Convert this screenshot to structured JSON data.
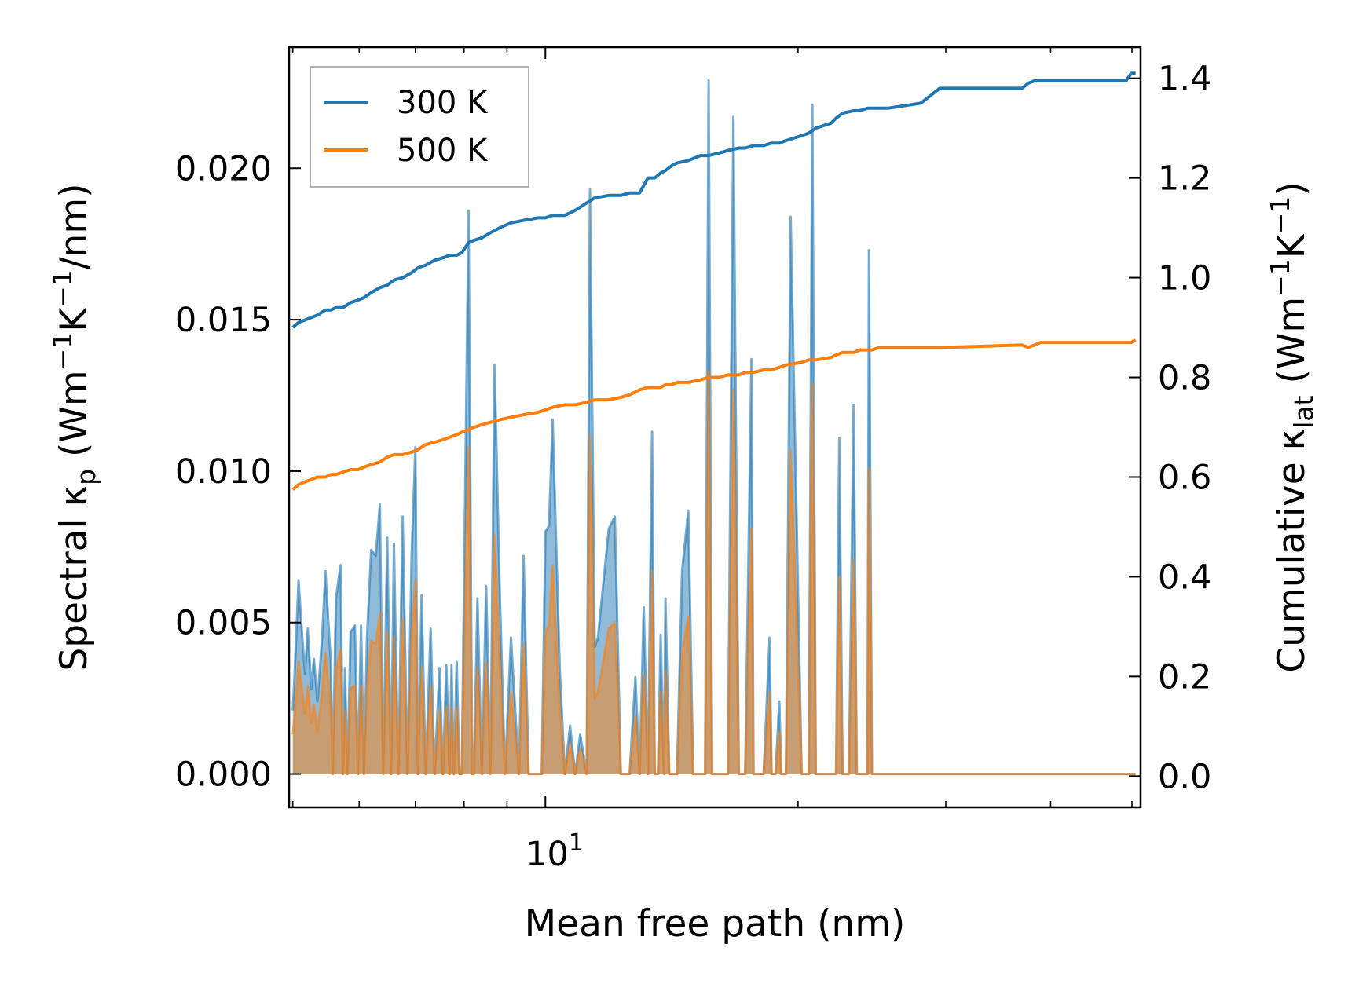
{
  "chart_data": {
    "type": "line",
    "xscale": "log",
    "xlim": [
      4.95,
      51.2
    ],
    "x_tick_major": [
      10
    ],
    "x_tick_major_label": {
      "base": "10",
      "exp": "1"
    },
    "x_tick_minor": [
      5,
      6,
      7,
      8,
      9,
      20,
      30,
      40,
      50
    ],
    "xlabel": "Mean free path (nm)",
    "ylabel_left": {
      "pre": "Spectral κ",
      "sub": "p",
      "mid": " (Wm",
      "sup1": "−1",
      "k": "K",
      "sup2": "−1",
      "post": "/nm)"
    },
    "ylabel_right": {
      "pre": "Cumulative κ",
      "sub": "lat",
      "mid": " (Wm",
      "sup1": "−1",
      "k": "K",
      "sup2": "−1",
      "post": ")"
    },
    "ylim_left": [
      -0.0011,
      0.024
    ],
    "ylim_right": [
      -0.0625,
      1.4625
    ],
    "yticks_left": [
      "0.000",
      "0.005",
      "0.010",
      "0.015",
      "0.020"
    ],
    "yticks_right": [
      "0.0",
      "0.2",
      "0.4",
      "0.6",
      "0.8",
      "1.0",
      "1.2",
      "1.4"
    ],
    "legend": {
      "position": "upper left",
      "entries": [
        "300 K",
        "500 K"
      ]
    },
    "colors": {
      "300 K": "#1f77b4",
      "500 K": "#ff7f0e"
    },
    "spectral": {
      "x": [
        5.0,
        5.03,
        5.08,
        5.13,
        5.17,
        5.21,
        5.26,
        5.3,
        5.35,
        5.42,
        5.47,
        5.5,
        5.55,
        5.58,
        5.63,
        5.7,
        5.74,
        5.77,
        5.81,
        5.86,
        5.9,
        5.93,
        5.98,
        6.03,
        6.08,
        6.13,
        6.2,
        6.28,
        6.35,
        6.41,
        6.48,
        6.55,
        6.6,
        6.68,
        6.76,
        6.85,
        6.93,
        7.0,
        7.05,
        7.12,
        7.2,
        7.3,
        7.38,
        7.48,
        7.55,
        7.62,
        7.69,
        7.73,
        7.78,
        7.84,
        7.9,
        7.95,
        8.1,
        8.18,
        8.22,
        8.3,
        8.4,
        8.5,
        8.6,
        8.7,
        8.82,
        8.95,
        9.1,
        9.3,
        9.42,
        9.55,
        9.8,
        9.9,
        10.0,
        10.1,
        10.2,
        10.4,
        10.55,
        10.7,
        10.85,
        11.0,
        11.2,
        11.3,
        11.45,
        11.55,
        11.9,
        12.1,
        12.3,
        12.45,
        12.6,
        12.8,
        12.95,
        13.1,
        13.25,
        13.4,
        13.5,
        13.62,
        13.72,
        13.85,
        13.9,
        14.05,
        14.15,
        14.25,
        14.35,
        14.55,
        14.8,
        15.0,
        15.3,
        15.5,
        15.65,
        15.8,
        16.1,
        16.3,
        16.5,
        16.75,
        17.0,
        17.1,
        17.3,
        17.6,
        17.7,
        17.9,
        18.2,
        18.5,
        18.6,
        18.8,
        19.0,
        19.1,
        19.35,
        19.6,
        20.2,
        20.4,
        20.6,
        20.8,
        21.0,
        21.9,
        22.0,
        22.2,
        22.4,
        22.6,
        23.0,
        23.3,
        23.5,
        23.7,
        24.0,
        24.2,
        24.3,
        24.5,
        24.8,
        25.0,
        25.3,
        25.6,
        28.0,
        28.3,
        28.5,
        28.9,
        29.5,
        29.8,
        30.0,
        30.3,
        37.0,
        37.3,
        37.6,
        37.9,
        38.3,
        38.6,
        38.9,
        49.2,
        49.6,
        49.9,
        50.2,
        50.5
      ],
      "y300": [
        0.0021,
        0.0035,
        0.0064,
        0.0046,
        0.0033,
        0.0048,
        0.0028,
        0.0038,
        0.0024,
        0.0045,
        0.0067,
        0.0055,
        0.0037,
        0.0,
        0.0058,
        0.0069,
        0.0,
        0.0035,
        0.0,
        0.0047,
        0.0048,
        0.0049,
        0.0,
        0.0049,
        0.0,
        0.0045,
        0.0074,
        0.0072,
        0.0089,
        0.0,
        0.0078,
        0.0,
        0.0076,
        0.0,
        0.0085,
        0.0,
        0.0073,
        0.0108,
        0.0,
        0.0059,
        0.0,
        0.0048,
        0.0,
        0.0035,
        0.0,
        0.0036,
        0.0,
        0.0036,
        0.0,
        0.0037,
        0.0,
        0.0,
        0.0186,
        0.0,
        0.0,
        0.0058,
        0.0,
        0.0062,
        0.0,
        0.0135,
        0.0062,
        0.0,
        0.0045,
        0.0,
        0.0072,
        0.0,
        0.0,
        0.0,
        0.008,
        0.0082,
        0.0117,
        0.0035,
        0.0,
        0.0016,
        0.0,
        0.0013,
        0.0,
        0.0193,
        0.0042,
        0.0045,
        0.0081,
        0.0085,
        0.0,
        0.0,
        0.0,
        0.0032,
        0.0,
        0.0055,
        0.0,
        0.0113,
        0.0,
        0.0,
        0.0046,
        0.0,
        0.0058,
        0.0,
        0.0,
        0.0,
        0.0,
        0.0067,
        0.0087,
        0.0,
        0.0,
        0.0,
        0.0229,
        0.0,
        0.0,
        0.0,
        0.0,
        0.0217,
        0.0,
        0.0,
        0.0,
        0.0137,
        0.0,
        0.0,
        0.0,
        0.0045,
        0.0,
        0.0,
        0.0024,
        0.0,
        0.0,
        0.0184,
        0.0,
        0.0,
        0.0,
        0.0221,
        0.0,
        0.0,
        0.0,
        0.0,
        0.0111,
        0.0,
        0.0,
        0.0122,
        0.0,
        0.0,
        0.0,
        0.0,
        0.0173,
        0.0,
        0.0,
        0.0,
        0.0,
        0.0,
        0.0,
        0.0,
        0.0,
        0.0,
        0.0,
        0.0,
        0.0,
        0.0,
        0.0,
        0.0,
        0.0,
        0.0,
        0.0,
        0.0,
        0.0,
        0.0,
        0.0,
        0.0,
        0.0,
        0.0,
        0.0
      ],
      "y500": [
        0.0013,
        0.002,
        0.0037,
        0.0028,
        0.002,
        0.0029,
        0.0017,
        0.0023,
        0.0014,
        0.0027,
        0.004,
        0.0033,
        0.0022,
        0.0,
        0.0035,
        0.0041,
        0.0,
        0.0021,
        0.0,
        0.0028,
        0.0029,
        0.0029,
        0.0,
        0.0029,
        0.0,
        0.0027,
        0.0044,
        0.0043,
        0.0053,
        0.0,
        0.0047,
        0.0,
        0.0045,
        0.0,
        0.0051,
        0.0,
        0.0044,
        0.0064,
        0.0,
        0.0035,
        0.0,
        0.0029,
        0.0,
        0.0021,
        0.0,
        0.0022,
        0.0,
        0.0022,
        0.0,
        0.0022,
        0.0,
        0.0,
        0.0108,
        0.0,
        0.0,
        0.0035,
        0.0,
        0.0037,
        0.0,
        0.0079,
        0.0037,
        0.0,
        0.0027,
        0.0,
        0.0043,
        0.0,
        0.0,
        0.0,
        0.0047,
        0.0049,
        0.0069,
        0.0021,
        0.0,
        0.001,
        0.0,
        0.0008,
        0.0,
        0.0112,
        0.0025,
        0.0027,
        0.0048,
        0.005,
        0.0,
        0.0,
        0.0,
        0.0019,
        0.0,
        0.0033,
        0.0,
        0.0067,
        0.0,
        0.0,
        0.0027,
        0.0,
        0.0034,
        0.0,
        0.0,
        0.0,
        0.0,
        0.004,
        0.0052,
        0.0,
        0.0,
        0.0,
        0.0133,
        0.0,
        0.0,
        0.0,
        0.0,
        0.0127,
        0.0,
        0.0,
        0.0,
        0.0081,
        0.0,
        0.0,
        0.0,
        0.0027,
        0.0,
        0.0,
        0.0014,
        0.0,
        0.0,
        0.0107,
        0.0,
        0.0,
        0.0,
        0.0129,
        0.0,
        0.0,
        0.0,
        0.0,
        0.0065,
        0.0,
        0.0,
        0.0071,
        0.0,
        0.0,
        0.0,
        0.0,
        0.0101,
        0.0,
        0.0,
        0.0,
        0.0,
        0.0,
        0.0,
        0.0,
        0.0,
        0.0,
        0.0,
        0.0,
        0.0,
        0.0,
        0.0,
        0.0,
        0.0,
        0.0,
        0.0,
        0.0,
        0.0,
        0.0,
        0.0,
        0.0,
        0.0,
        0.0,
        0.0
      ]
    },
    "cumulative": {
      "x": [
        5.0,
        5.08,
        5.17,
        5.26,
        5.35,
        5.47,
        5.55,
        5.63,
        5.74,
        5.86,
        5.98,
        6.08,
        6.2,
        6.35,
        6.48,
        6.6,
        6.76,
        6.93,
        7.05,
        7.2,
        7.38,
        7.55,
        7.69,
        7.84,
        7.95,
        8.1,
        8.22,
        8.4,
        8.6,
        8.82,
        9.1,
        9.42,
        9.8,
        10.0,
        10.2,
        10.55,
        10.85,
        11.2,
        11.45,
        11.9,
        12.3,
        12.6,
        12.95,
        13.25,
        13.5,
        13.72,
        13.9,
        14.15,
        14.35,
        14.8,
        15.3,
        15.65,
        16.1,
        16.5,
        17.0,
        17.3,
        17.7,
        18.2,
        18.6,
        19.0,
        19.35,
        20.2,
        20.6,
        21.0,
        21.9,
        22.2,
        22.6,
        23.3,
        23.7,
        24.2,
        24.5,
        25.0,
        25.6,
        28.0,
        28.5,
        29.5,
        30.0,
        37.0,
        37.6,
        38.3,
        38.9,
        49.2,
        49.9,
        50.5
      ],
      "y300": [
        0.9,
        0.91,
        0.915,
        0.92,
        0.925,
        0.935,
        0.935,
        0.94,
        0.94,
        0.95,
        0.955,
        0.96,
        0.97,
        0.98,
        0.985,
        0.995,
        1.0,
        1.01,
        1.02,
        1.025,
        1.035,
        1.04,
        1.045,
        1.045,
        1.05,
        1.07,
        1.075,
        1.08,
        1.09,
        1.1,
        1.11,
        1.115,
        1.12,
        1.12,
        1.125,
        1.125,
        1.135,
        1.15,
        1.16,
        1.165,
        1.165,
        1.17,
        1.17,
        1.2,
        1.2,
        1.21,
        1.215,
        1.225,
        1.23,
        1.235,
        1.245,
        1.245,
        1.25,
        1.255,
        1.26,
        1.26,
        1.265,
        1.265,
        1.27,
        1.27,
        1.275,
        1.285,
        1.29,
        1.3,
        1.31,
        1.32,
        1.33,
        1.335,
        1.335,
        1.34,
        1.34,
        1.34,
        1.34,
        1.35,
        1.36,
        1.38,
        1.38,
        1.38,
        1.39,
        1.395,
        1.395,
        1.395,
        1.41,
        1.41
      ],
      "y500": [
        0.575,
        0.585,
        0.59,
        0.595,
        0.6,
        0.6,
        0.605,
        0.605,
        0.61,
        0.615,
        0.615,
        0.62,
        0.625,
        0.63,
        0.64,
        0.645,
        0.645,
        0.65,
        0.655,
        0.665,
        0.67,
        0.675,
        0.68,
        0.685,
        0.69,
        0.695,
        0.7,
        0.705,
        0.71,
        0.715,
        0.72,
        0.725,
        0.73,
        0.735,
        0.74,
        0.745,
        0.745,
        0.75,
        0.755,
        0.755,
        0.76,
        0.765,
        0.775,
        0.78,
        0.78,
        0.78,
        0.785,
        0.785,
        0.79,
        0.79,
        0.795,
        0.8,
        0.8,
        0.805,
        0.805,
        0.81,
        0.81,
        0.815,
        0.815,
        0.82,
        0.825,
        0.83,
        0.835,
        0.835,
        0.84,
        0.845,
        0.85,
        0.85,
        0.855,
        0.855,
        0.855,
        0.86,
        0.86,
        0.86,
        0.86,
        0.86,
        0.86,
        0.865,
        0.86,
        0.865,
        0.87,
        0.87,
        0.87,
        0.875
      ]
    }
  }
}
